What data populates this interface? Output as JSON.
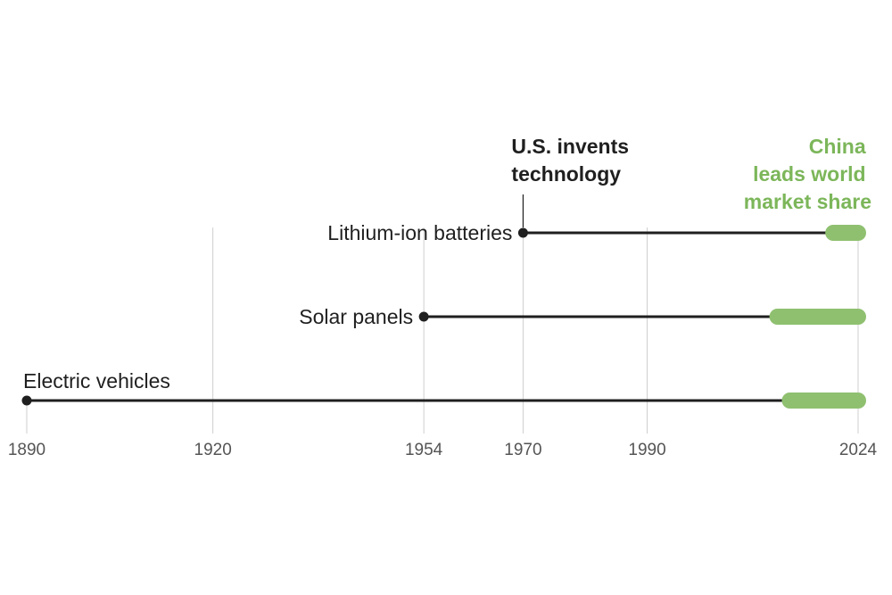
{
  "chart_data": {
    "type": "timeline",
    "xlim": [
      1890,
      2024
    ],
    "tick_labels": [
      "1890",
      "1920",
      "1954",
      "1970",
      "1990",
      "2024"
    ],
    "ticks": [
      1890,
      1920,
      1954,
      1970,
      1990,
      2024
    ],
    "series": [
      {
        "name": "Lithium-ion batteries",
        "invented": 1970,
        "china_leads_from": 2020,
        "end": 2024
      },
      {
        "name": "Solar panels",
        "invented": 1954,
        "china_leads_from": 2011,
        "end": 2024
      },
      {
        "name": "Electric vehicles",
        "invented": 1890,
        "china_leads_from": 2013,
        "end": 2024
      }
    ],
    "annotations": {
      "us": [
        "U.S. invents",
        "technology"
      ],
      "china": [
        "China",
        "leads world",
        "market share"
      ]
    },
    "colors": {
      "line": "#1f1f1f",
      "china": "#8fc070",
      "china_text": "#7cb65a",
      "grid": "#cfcfcf",
      "tick": "#555555"
    }
  }
}
